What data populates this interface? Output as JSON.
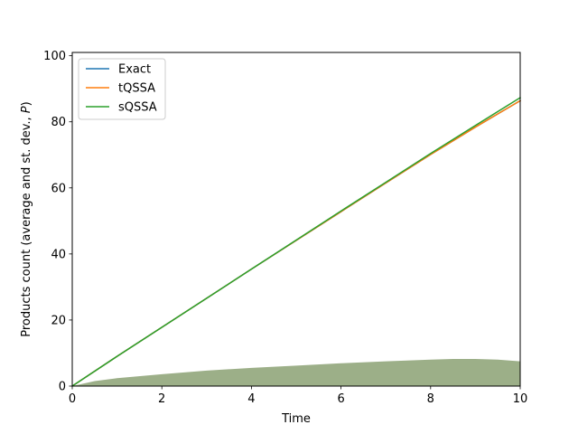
{
  "chart_data": {
    "type": "line",
    "title": "",
    "xlabel": "Time",
    "ylabel_parts": [
      "Products count (average and st. dev., ",
      "P",
      ")"
    ],
    "xlim": [
      0,
      10
    ],
    "ylim": [
      0,
      101
    ],
    "xticks": [
      0,
      2,
      4,
      6,
      8,
      10
    ],
    "yticks": [
      0,
      20,
      40,
      60,
      80,
      100
    ],
    "grid": false,
    "legend_position": "upper-left",
    "series": [
      {
        "name": "Exact",
        "color": "#1f77b4",
        "x": [
          0,
          1,
          2,
          3,
          4,
          5,
          6,
          7,
          8,
          9,
          10
        ],
        "y": [
          0,
          9,
          17.8,
          26.6,
          35.4,
          44.1,
          52.8,
          61.5,
          70.1,
          78.4,
          86.4
        ]
      },
      {
        "name": "tQSSA",
        "color": "#ff7f0e",
        "x": [
          0,
          1,
          2,
          3,
          4,
          5,
          6,
          7,
          8,
          9,
          10
        ],
        "y": [
          0,
          9,
          17.8,
          26.6,
          35.4,
          44.1,
          52.8,
          61.5,
          70.1,
          78.4,
          86.4
        ]
      },
      {
        "name": "sQSSA",
        "color": "#2ca02c",
        "x": [
          0,
          1,
          2,
          3,
          4,
          5,
          6,
          7,
          8,
          9,
          10
        ],
        "y": [
          0,
          9,
          17.8,
          26.6,
          35.4,
          44.2,
          53.0,
          61.7,
          70.4,
          78.9,
          87.3
        ]
      }
    ],
    "std_band": {
      "color": "#9caf88",
      "x": [
        0,
        0.5,
        1,
        2,
        3,
        4,
        5,
        6,
        7,
        8,
        8.5,
        9,
        9.5,
        10
      ],
      "y": [
        0,
        1.5,
        2.4,
        3.6,
        4.7,
        5.5,
        6.2,
        6.9,
        7.5,
        8.0,
        8.2,
        8.2,
        8.0,
        7.5
      ]
    }
  }
}
